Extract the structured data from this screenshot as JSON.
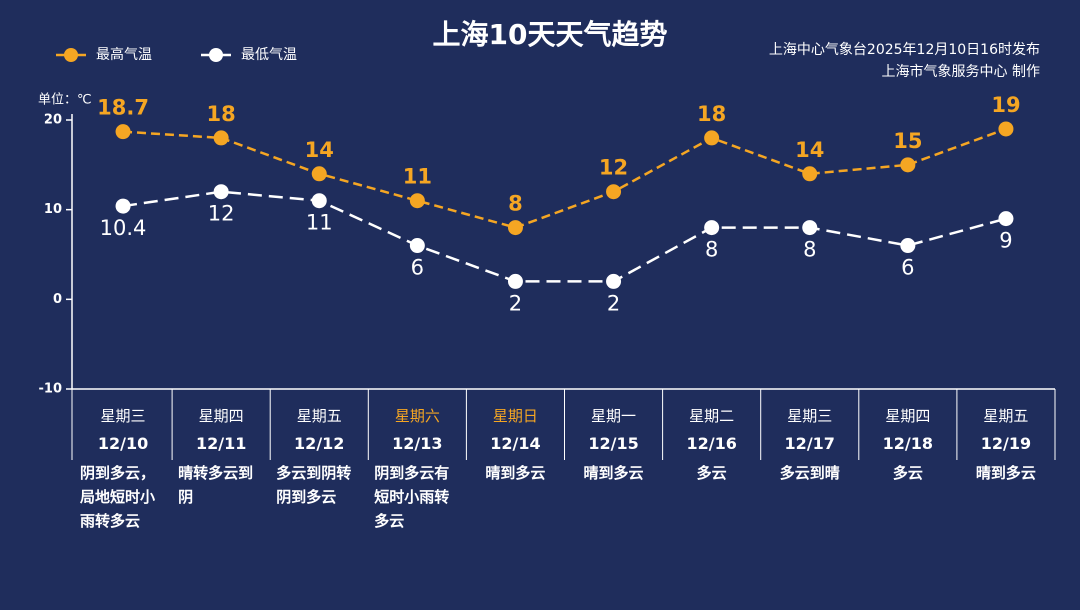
{
  "chart_data": {
    "type": "line",
    "title": "上海10天天气趋势",
    "source": "上海中心气象台2025年12月10日16时发布",
    "producer": "上海市气象服务中心 制作",
    "unit_label": "单位：℃",
    "categories": [
      "12/10",
      "12/11",
      "12/12",
      "12/13",
      "12/14",
      "12/15",
      "12/16",
      "12/17",
      "12/18",
      "12/19"
    ],
    "weekdays": [
      "星期三",
      "星期四",
      "星期五",
      "星期六",
      "星期日",
      "星期一",
      "星期二",
      "星期三",
      "星期四",
      "星期五"
    ],
    "weekday_colors": [
      "#ffffff",
      "#ffffff",
      "#ffffff",
      "#f5a623",
      "#f5a623",
      "#ffffff",
      "#ffffff",
      "#ffffff",
      "#ffffff",
      "#ffffff"
    ],
    "weather": [
      "阴到多云，局地短时小雨转多云",
      "晴转多云到阴",
      "多云到阴转阴到多云",
      "阴到多云有短时小雨转多云",
      "晴到多云",
      "晴到多云",
      "多云",
      "多云到晴",
      "多云",
      "晴到多云"
    ],
    "series": [
      {
        "name": "最高气温",
        "color": "#f5a623",
        "values": [
          18.7,
          18,
          14,
          11,
          8,
          12,
          18,
          14,
          15,
          19
        ]
      },
      {
        "name": "最低气温",
        "color": "#ffffff",
        "values": [
          10.4,
          12,
          11,
          6,
          2,
          2,
          8,
          8,
          6,
          9
        ]
      }
    ],
    "ylim": [
      -10,
      20
    ],
    "yticks": [
      -10,
      0,
      10,
      20
    ]
  }
}
